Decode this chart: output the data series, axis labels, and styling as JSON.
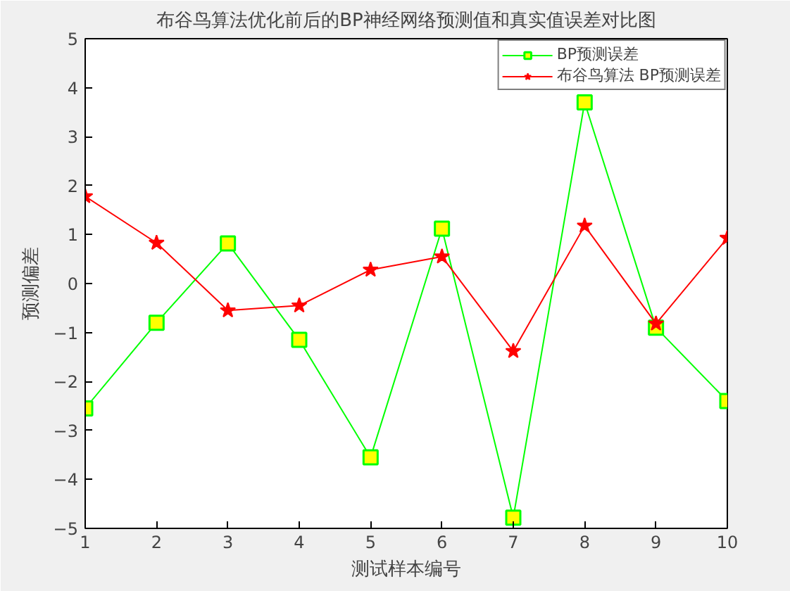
{
  "chart_data": {
    "type": "line",
    "title": "布谷鸟算法优化前后的BP神经网络预测值和真实值误差对比图",
    "xlabel": "测试样本编号",
    "ylabel": "预测偏差",
    "x": [
      1,
      2,
      3,
      4,
      5,
      6,
      7,
      8,
      9,
      10
    ],
    "series": [
      {
        "name": "BP预测误差",
        "color": "#00ff00",
        "marker": "square",
        "values": [
          -2.55,
          -0.8,
          0.82,
          -1.15,
          -3.55,
          1.12,
          -4.78,
          3.7,
          -0.9,
          -2.4
        ]
      },
      {
        "name": "布谷鸟算法 BP预测误差",
        "color": "#ff0000",
        "marker": "star",
        "values": [
          1.78,
          0.83,
          -0.55,
          -0.45,
          0.28,
          0.55,
          -1.38,
          1.18,
          -0.82,
          0.93
        ]
      }
    ],
    "xlim": [
      1,
      10
    ],
    "ylim": [
      -5,
      5
    ],
    "xticks": [
      1,
      2,
      3,
      4,
      5,
      6,
      7,
      8,
      9,
      10
    ],
    "yticks": [
      -5,
      -4,
      -3,
      -2,
      -1,
      0,
      1,
      2,
      3,
      4,
      5
    ],
    "grid": false,
    "legend": "top right",
    "line_style": "solid"
  }
}
